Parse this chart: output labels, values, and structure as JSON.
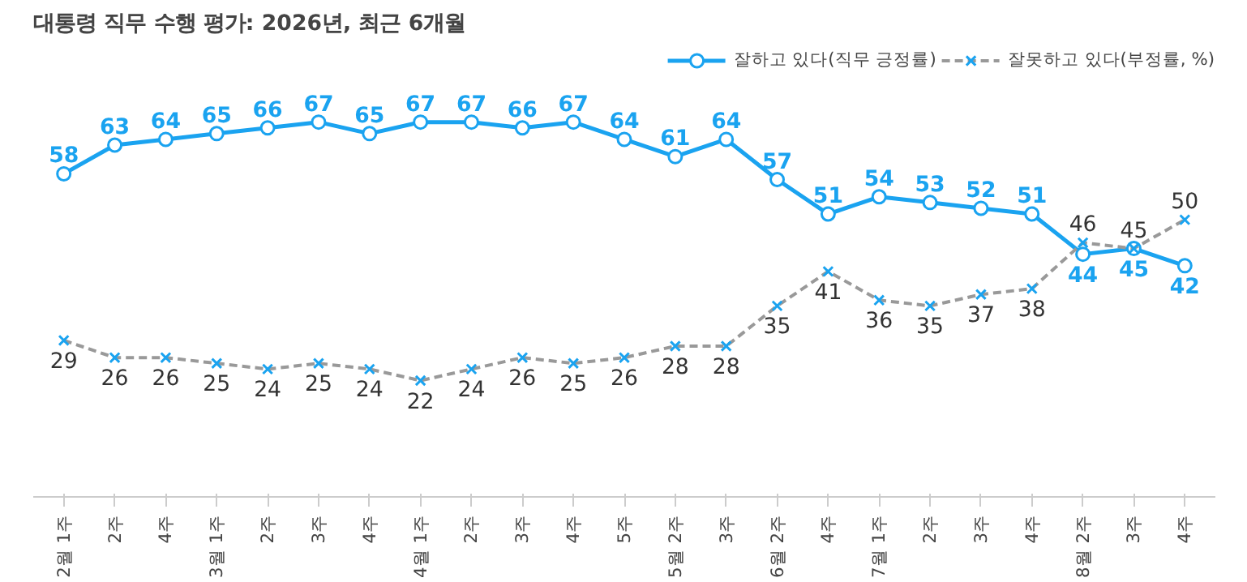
{
  "chart_data": {
    "type": "line",
    "title": "대통령 직무 수행 평가: 2026년, 최근 6개월",
    "categories": [
      "2월 1주",
      "2주",
      "4주",
      "3월 1주",
      "2주",
      "3주",
      "4주",
      "4월 1주",
      "2주",
      "3주",
      "4주",
      "5주",
      "5월 2주",
      "3주",
      "6월 2주",
      "4주",
      "7월 1주",
      "2주",
      "3주",
      "4주",
      "8월 2주",
      "3주",
      "4주"
    ],
    "series": [
      {
        "name": "잘하고 있다(직무 긍정률)",
        "color": "#1aa3f0",
        "line_style": "solid",
        "marker": "circle",
        "values": [
          58,
          63,
          64,
          65,
          66,
          67,
          65,
          67,
          67,
          66,
          67,
          64,
          61,
          64,
          57,
          51,
          54,
          53,
          52,
          51,
          44,
          45,
          42
        ]
      },
      {
        "name": "잘못하고 있다(부정률, %)",
        "color": "#999999",
        "line_style": "dashed",
        "marker": "cross",
        "values": [
          29,
          26,
          26,
          25,
          24,
          25,
          24,
          22,
          24,
          26,
          25,
          26,
          28,
          28,
          35,
          41,
          36,
          35,
          37,
          38,
          46,
          45,
          50
        ]
      }
    ],
    "tick_labels": "x",
    "data_labels": true,
    "legend": "top right",
    "grid": false
  }
}
